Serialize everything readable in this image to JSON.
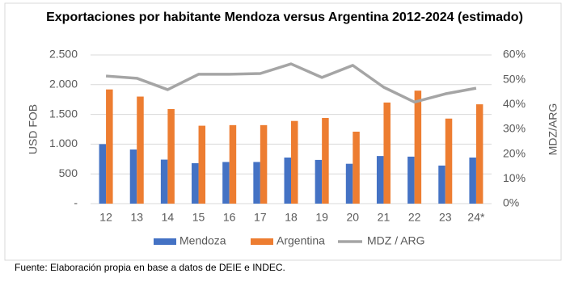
{
  "chart_data": {
    "type": "bar_line",
    "title": "Exportaciones por habitante Mendoza versus Argentina 2012-2024 (estimado)",
    "source": "Fuente: Elaboración propia en base a datos de DEIE e INDEC.",
    "ylabel": "USD FOB",
    "y2label": "MDZ/ARG",
    "categories": [
      "12",
      "13",
      "14",
      "15",
      "16",
      "17",
      "18",
      "19",
      "20",
      "21",
      "22",
      "23",
      "24*"
    ],
    "series": [
      {
        "name": "Mendoza",
        "color": "#4472c4",
        "kind": "bar",
        "values": [
          1000,
          910,
          740,
          680,
          700,
          700,
          775,
          735,
          670,
          800,
          790,
          640,
          775
        ]
      },
      {
        "name": "Argentina",
        "color": "#ed7d31",
        "kind": "bar",
        "values": [
          1920,
          1800,
          1590,
          1310,
          1320,
          1320,
          1390,
          1440,
          1210,
          1700,
          1900,
          1430,
          1670
        ]
      },
      {
        "name": "MDZ / ARG",
        "color": "#a5a5a5",
        "kind": "line",
        "axis": "y2",
        "values": [
          51.5,
          50.6,
          46,
          52.2,
          52.2,
          52.5,
          56.4,
          50.9,
          55.8,
          47,
          41,
          44.3,
          46.6
        ]
      }
    ],
    "ylim": [
      0,
      2500
    ],
    "yticks": [
      {
        "value": 0,
        "label": "-"
      },
      500,
      {
        "value": 1000,
        "label": "1.000"
      },
      {
        "value": 1500,
        "label": "1.500"
      },
      {
        "value": 2000,
        "label": "2.000"
      },
      {
        "value": 2500,
        "label": "2.500"
      }
    ],
    "y2lim": [
      0,
      60
    ],
    "y2ticks": [
      {
        "value": 0,
        "label": "0%"
      },
      {
        "value": 10,
        "label": "10%"
      },
      {
        "value": 20,
        "label": "20%"
      },
      {
        "value": 30,
        "label": "30%"
      },
      {
        "value": 40,
        "label": "40%"
      },
      {
        "value": 50,
        "label": "50%"
      },
      {
        "value": 60,
        "label": "60%"
      }
    ],
    "grid": true,
    "legend": "bottom"
  }
}
